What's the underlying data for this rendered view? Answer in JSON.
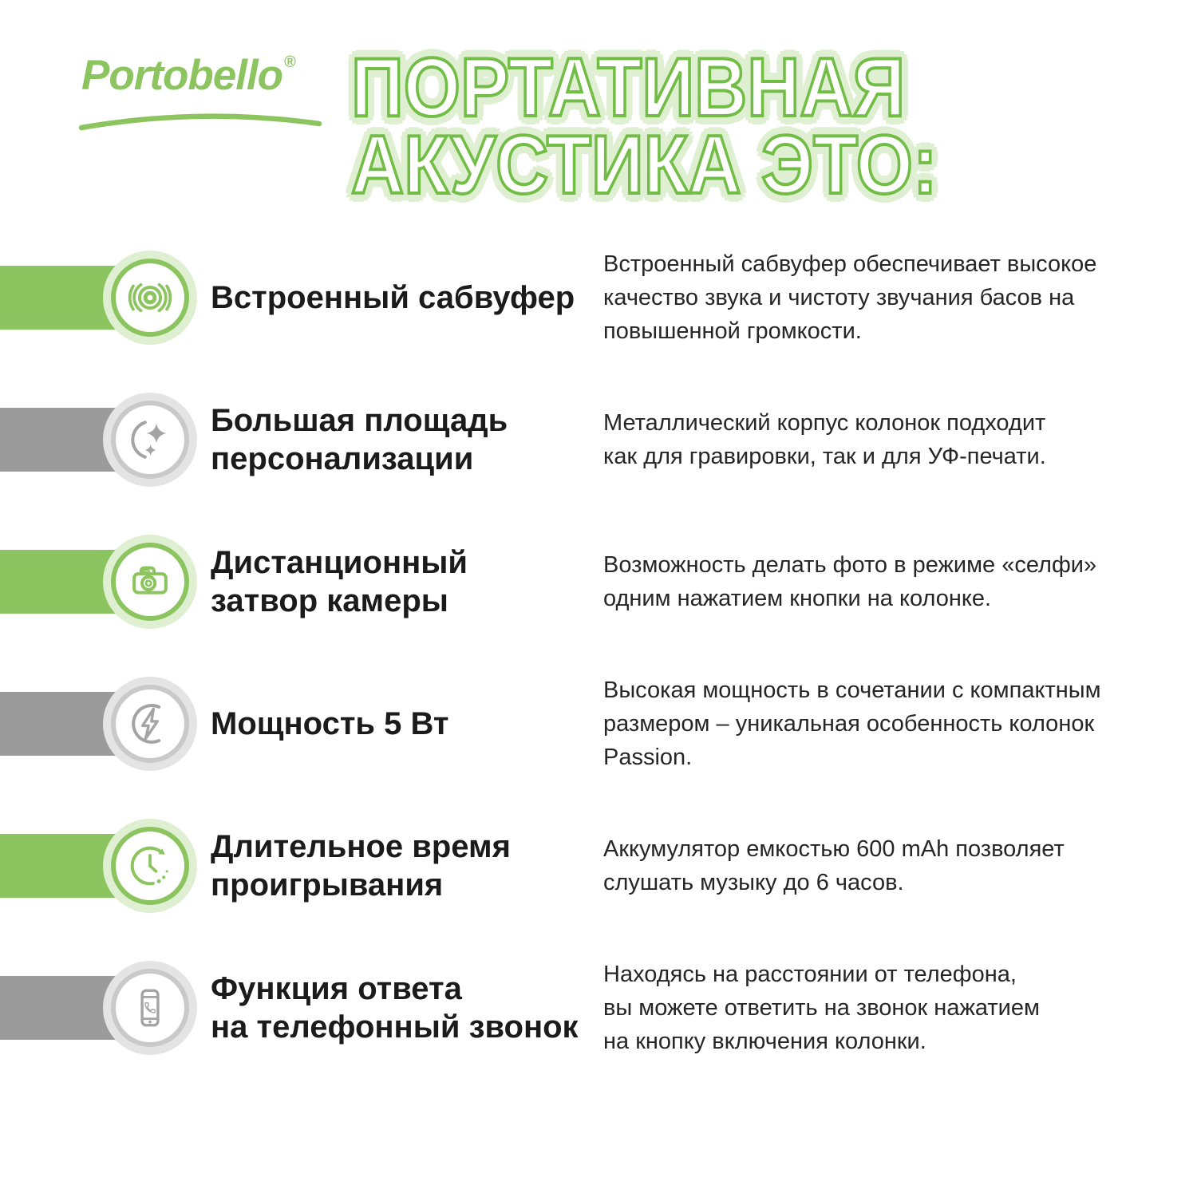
{
  "logo": {
    "text": "Portobello",
    "registered": "®"
  },
  "title": {
    "line1": "ПОРТАТИВНАЯ",
    "line2": "АКУСТИКА ЭТО:"
  },
  "colors": {
    "green": "#8cc45f",
    "green_stroke": "#72bd45",
    "green_halo": "#dfefd2",
    "gray": "#9b9b9b",
    "gray_light": "#c9c9c9",
    "gray_halo": "#e4e4e4",
    "text": "#1b1b1b"
  },
  "features": [
    {
      "accent": "green",
      "icon": "subwoofer-icon",
      "title_lines": [
        "Встроенный сабвуфер"
      ],
      "description_lines": [
        "Встроенный сабвуфер обеспечивает высокое",
        "качество звука и чистоту звучания басов на",
        "повышенной громкости."
      ]
    },
    {
      "accent": "gray",
      "icon": "personalization-sparkles-icon",
      "title_lines": [
        "Большая площадь",
        "персонализации"
      ],
      "description_lines": [
        "Металлический корпус колонок подходит",
        "как для гравировки, так и для УФ-печати."
      ]
    },
    {
      "accent": "green",
      "icon": "camera-shutter-icon",
      "title_lines": [
        "Дистанционный",
        "затвор камеры"
      ],
      "description_lines": [
        "Возможность делать фото в режиме «селфи»",
        "одним нажатием кнопки на колонке."
      ]
    },
    {
      "accent": "gray",
      "icon": "power-bolt-icon",
      "title_lines": [
        "Мощность 5 Вт"
      ],
      "description_lines": [
        "Высокая мощность в сочетании с компактным",
        "размером – уникальная особенность колонок",
        "Passion."
      ]
    },
    {
      "accent": "green",
      "icon": "playtime-clock-icon",
      "title_lines": [
        "Длительное время",
        "проигрывания"
      ],
      "description_lines": [
        "Аккумулятор емкостью 600 mAh позволяет",
        "слушать музыку до 6 часов."
      ]
    },
    {
      "accent": "gray",
      "icon": "phone-answer-icon",
      "title_lines": [
        "Функция ответа",
        "на телефонный звонок"
      ],
      "description_lines": [
        "Находясь на расстоянии от телефона,",
        "вы можете ответить на звонок нажатием",
        "на кнопку включения колонки."
      ]
    }
  ]
}
